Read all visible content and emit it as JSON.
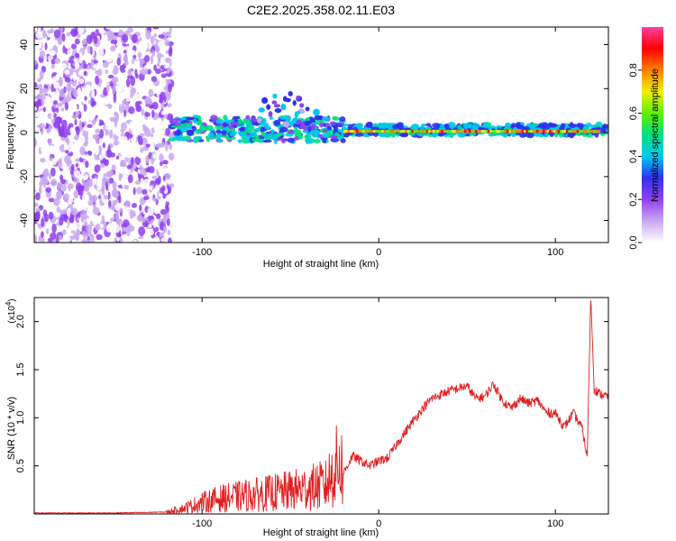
{
  "chart_data": [
    {
      "type": "heatmap",
      "title": "C2E2.2025.358.02.11.E03",
      "xlabel": "Height of straight line (km)",
      "ylabel": "Frequency (Hz)",
      "xlim": [
        -195,
        130
      ],
      "ylim": [
        -50,
        48
      ],
      "xticks": [
        -100,
        0,
        100
      ],
      "xtick_labels": [
        "-100",
        "0",
        "100"
      ],
      "yticks": [
        -40,
        -20,
        0,
        20,
        40
      ],
      "ytick_labels": [
        "-40",
        "-20",
        "0",
        "20",
        "40"
      ],
      "noise_region_x": [
        -195,
        -117
      ],
      "signal_band_hz": [
        -5,
        6
      ],
      "colorbar": {
        "label": "Normalized spectral amplitude",
        "range": [
          0,
          1
        ],
        "ticks": [
          0.0,
          0.2,
          0.4,
          0.6,
          0.8
        ],
        "tick_labels": [
          "0.0",
          "0.2",
          "0.4",
          "0.6",
          "0.8"
        ],
        "colors": [
          "#ffffff",
          "#c8a8f0",
          "#9040f0",
          "#3030f0",
          "#00c8f0",
          "#00e080",
          "#60f000",
          "#f0f000",
          "#ff8000",
          "#ff0000",
          "#ff40a0"
        ]
      }
    },
    {
      "type": "line",
      "title": "",
      "xlabel": "Height of straight line (km)",
      "ylabel": "SNR (10 * v/v)",
      "y_multiplier": "(x10",
      "y_multiplier_exp": "4",
      "y_multiplier_close": ")",
      "xlim": [
        -195,
        130
      ],
      "ylim": [
        0,
        2.25
      ],
      "xticks": [
        -100,
        0,
        100
      ],
      "xtick_labels": [
        "-100",
        "0",
        "100"
      ],
      "yticks": [
        0.5,
        1.0,
        1.5,
        2.0
      ],
      "ytick_labels": [
        "0.5",
        "1.0",
        "1.5",
        "2.0"
      ],
      "color": "#e02020",
      "series": [
        {
          "name": "SNR",
          "x": [
            -195,
            -150,
            -120,
            -110,
            -100,
            -90,
            -80,
            -70,
            -60,
            -50,
            -40,
            -30,
            -22,
            -20,
            -15,
            -10,
            -5,
            0,
            5,
            10,
            15,
            20,
            25,
            30,
            40,
            50,
            55,
            60,
            65,
            70,
            75,
            80,
            85,
            90,
            95,
            100,
            105,
            110,
            115,
            118,
            120,
            122,
            125,
            130
          ],
          "y": [
            0.01,
            0.01,
            0.02,
            0.06,
            0.12,
            0.16,
            0.18,
            0.2,
            0.22,
            0.24,
            0.27,
            0.3,
            0.55,
            0.42,
            0.6,
            0.55,
            0.5,
            0.55,
            0.58,
            0.72,
            0.85,
            0.98,
            1.1,
            1.2,
            1.28,
            1.33,
            1.2,
            1.22,
            1.35,
            1.18,
            1.1,
            1.2,
            1.15,
            1.18,
            1.05,
            1.05,
            0.9,
            1.05,
            0.9,
            0.6,
            2.25,
            1.3,
            1.25,
            1.22
          ]
        }
      ]
    }
  ]
}
